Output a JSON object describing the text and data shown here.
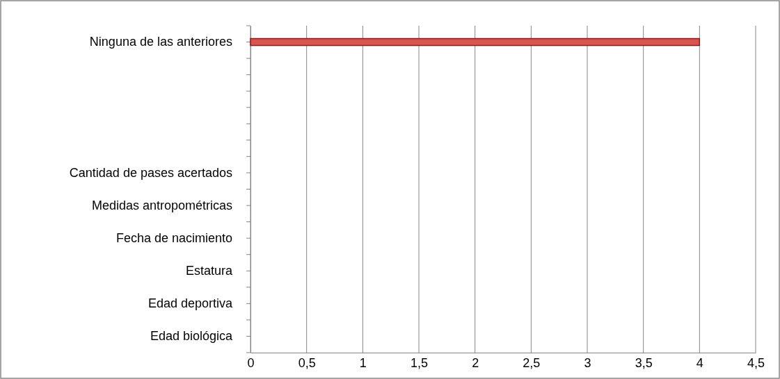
{
  "chart_data": {
    "type": "bar",
    "orientation": "horizontal",
    "categories": [
      "Ninguna de las anteriores",
      null,
      null,
      null,
      "Cantidad de pases acertados",
      "Medidas antropométricas",
      "Fecha de nacimiento",
      "Estatura",
      "Edad deportiva",
      "Edad biológica"
    ],
    "values": [
      4,
      0,
      0,
      0,
      0,
      0,
      0,
      0,
      0,
      0
    ],
    "color": "#d9534f",
    "xlim": [
      0,
      4.5
    ],
    "xticks": [
      {
        "value": 0,
        "label": "0"
      },
      {
        "value": 0.5,
        "label": "0,5"
      },
      {
        "value": 1,
        "label": "1"
      },
      {
        "value": 1.5,
        "label": "1,5"
      },
      {
        "value": 2,
        "label": "2"
      },
      {
        "value": 2.5,
        "label": "2,5"
      },
      {
        "value": 3,
        "label": "3"
      },
      {
        "value": 3.5,
        "label": "3,5"
      },
      {
        "value": 4,
        "label": "4"
      },
      {
        "value": 4.5,
        "label": "4,5"
      }
    ],
    "grid": "x"
  }
}
